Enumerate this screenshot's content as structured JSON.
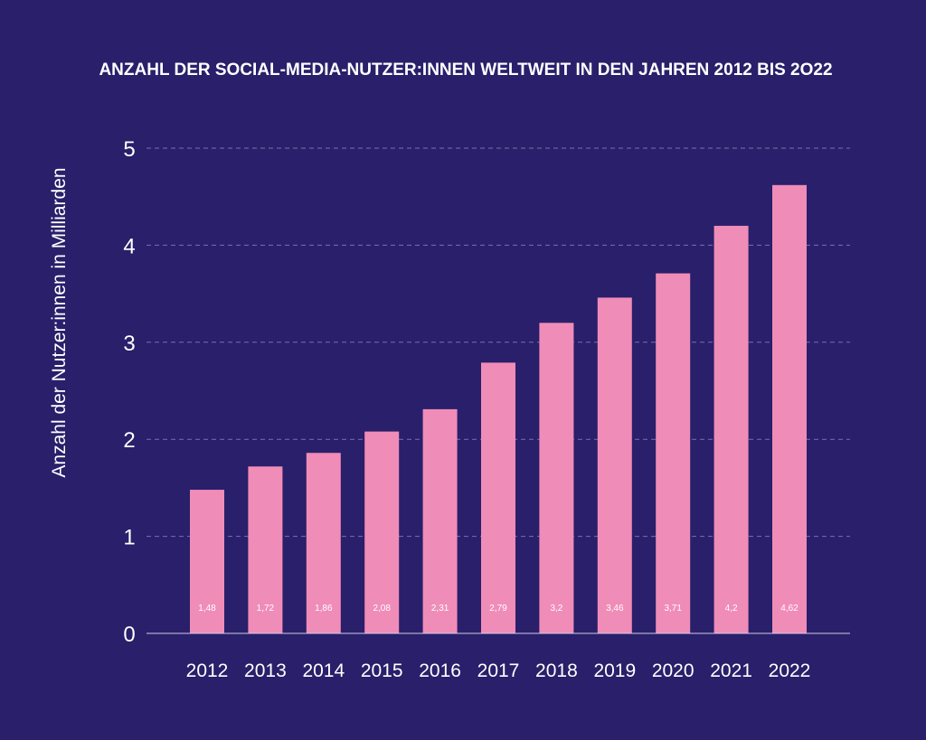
{
  "colors": {
    "background": "#291f6a",
    "bar": "#f08cb8",
    "text": "#ffffff",
    "grid": "#7a70a8"
  },
  "chart_data": {
    "type": "bar",
    "title": "ANZAHL DER SOCIAL-MEDIA-NUTZER:INNEN WELTWEIT IN DEN JAHREN 2012 BIS 2O22",
    "xlabel": "",
    "ylabel": "Anzahl der Nutzer:innen in Milliarden",
    "ylim": [
      0,
      5
    ],
    "yticks": [
      "0",
      "1",
      "2",
      "3",
      "4",
      "5"
    ],
    "grid": "horizontal dashed",
    "categories": [
      "2012",
      "2013",
      "2014",
      "2015",
      "2016",
      "2017",
      "2018",
      "2019",
      "2020",
      "2021",
      "2022"
    ],
    "values": [
      1.48,
      1.72,
      1.86,
      2.08,
      2.31,
      2.79,
      3.2,
      3.46,
      3.71,
      4.2,
      4.62
    ],
    "data_labels": [
      "1,48",
      "1,72",
      "1,86",
      "2,08",
      "2,31",
      "2,79",
      "3,2",
      "3,46",
      "3,71",
      "4,2",
      "4,62"
    ]
  }
}
